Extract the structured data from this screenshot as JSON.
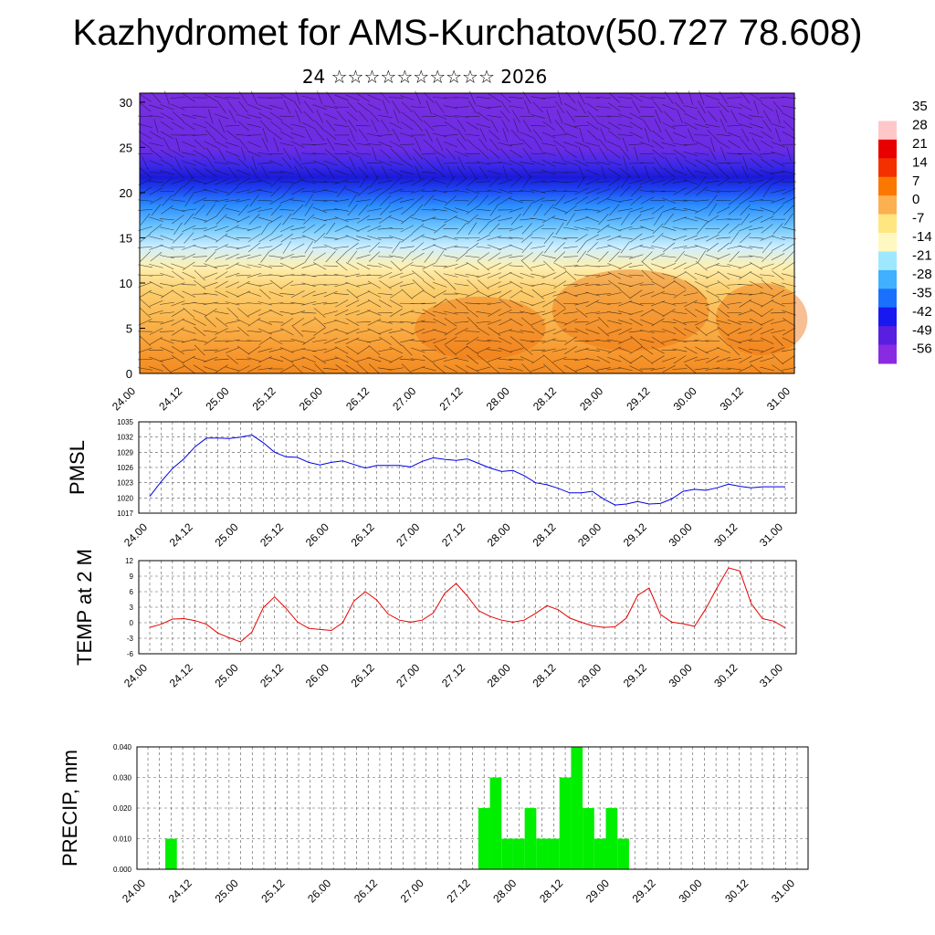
{
  "header": {
    "title": "Kazhydromet for AMS-Kurchatov(50.727 78.608)",
    "subtitle": "24 ☆☆☆☆☆☆☆☆☆☆ 2026"
  },
  "time_ticks": [
    "24.00",
    "24.12",
    "25.00",
    "25.12",
    "26.00",
    "26.12",
    "27.00",
    "27.12",
    "28.00",
    "28.12",
    "29.00",
    "29.12",
    "30.00",
    "30.12",
    "31.00"
  ],
  "colors": {
    "pmsl_line": "#0000e6",
    "temp_line": "#e60000",
    "precip_bar": "#00ee00"
  },
  "chart_data": [
    {
      "type": "heatmap",
      "name": "temperature-wind cross section",
      "x": "time_ticks",
      "ylim": [
        0,
        31
      ],
      "yticks": [
        0,
        5,
        10,
        15,
        20,
        25,
        30
      ],
      "colorbar": {
        "labels": [
          "35",
          "28",
          "21",
          "14",
          "7",
          "0",
          "-7",
          "-14",
          "-21",
          "-28",
          "-35",
          "-42",
          "-49",
          "-56"
        ],
        "colors": [
          "#ffffff",
          "#ffc8c8",
          "#e80000",
          "#f43000",
          "#fa7800",
          "#fcb050",
          "#ffe680",
          "#fff8c0",
          "#9ee8ff",
          "#40b0ff",
          "#1a70ff",
          "#1818f0",
          "#5a1ee0",
          "#8a2be2"
        ]
      }
    },
    {
      "type": "line",
      "name": "PMSL",
      "ylabel": "PMSL",
      "ylim": [
        1017,
        1035
      ],
      "yticks": [
        1017,
        1020,
        1023,
        1026,
        1029,
        1032,
        1035
      ],
      "x_hours": [
        0,
        3,
        6,
        9,
        12,
        15,
        18,
        21,
        24,
        27,
        30,
        33,
        36,
        39,
        42,
        45,
        48,
        51,
        54,
        57,
        60,
        63,
        66,
        69,
        72,
        75,
        78,
        81,
        84,
        87,
        90,
        93,
        96,
        99,
        102,
        105,
        108,
        111,
        114,
        117,
        120,
        123,
        126,
        129,
        132,
        135,
        138,
        141,
        144,
        147,
        150,
        153,
        156,
        159,
        162,
        165,
        168
      ],
      "values": [
        1020.3,
        1023.2,
        1025.8,
        1027.7,
        1030.1,
        1031.8,
        1031.8,
        1031.7,
        1032.0,
        1032.4,
        1030.9,
        1029.0,
        1028.1,
        1028.0,
        1027.0,
        1026.5,
        1027.0,
        1027.3,
        1026.6,
        1025.9,
        1026.4,
        1026.4,
        1026.4,
        1026.1,
        1027.2,
        1027.9,
        1027.6,
        1027.4,
        1027.7,
        1026.8,
        1025.9,
        1025.2,
        1025.4,
        1024.4,
        1023.0,
        1022.6,
        1021.9,
        1021.0,
        1021.0,
        1021.3,
        1019.8,
        1018.6,
        1018.8,
        1019.3,
        1018.8,
        1018.9,
        1019.8,
        1021.3,
        1021.7,
        1021.5,
        1022.0,
        1022.7,
        1022.3,
        1022.0,
        1022.2,
        1022.2,
        1022.2
      ]
    },
    {
      "type": "line",
      "name": "TEMP at 2 M",
      "ylabel": "TEMP at 2 M",
      "ylim": [
        -6,
        12
      ],
      "yticks": [
        -6,
        -3,
        0,
        3,
        6,
        9,
        12
      ],
      "x_hours": [
        0,
        3,
        6,
        9,
        12,
        15,
        18,
        21,
        24,
        27,
        30,
        33,
        36,
        39,
        42,
        45,
        48,
        51,
        54,
        57,
        60,
        63,
        66,
        69,
        72,
        75,
        78,
        81,
        84,
        87,
        90,
        93,
        96,
        99,
        102,
        105,
        108,
        111,
        114,
        117,
        120,
        123,
        126,
        129,
        132,
        135,
        138,
        141,
        144,
        147,
        150,
        153,
        156,
        159,
        162,
        165,
        168
      ],
      "values": [
        -0.9,
        -0.3,
        0.7,
        0.8,
        0.4,
        -0.3,
        -2.0,
        -2.9,
        -3.7,
        -1.8,
        2.9,
        5.0,
        2.8,
        0.2,
        -1.1,
        -1.3,
        -1.5,
        0.0,
        4.2,
        6.0,
        4.4,
        1.7,
        0.5,
        0.1,
        0.5,
        1.9,
        5.7,
        7.6,
        5.1,
        2.3,
        1.2,
        0.5,
        0.1,
        0.5,
        1.8,
        3.3,
        2.5,
        0.9,
        0.1,
        -0.6,
        -0.9,
        -0.8,
        0.9,
        5.3,
        6.7,
        1.6,
        0.1,
        -0.2,
        -0.7,
        2.7,
        6.8,
        10.6,
        10.0,
        3.7,
        0.8,
        0.3,
        -1.0
      ]
    },
    {
      "type": "bar",
      "name": "PRECIP",
      "ylabel": "PRECIP, mm",
      "ylim": [
        0,
        0.04
      ],
      "yticks": [
        "0.000",
        "0.010",
        "0.020",
        "0.030",
        "0.040"
      ],
      "bars": [
        {
          "t": 6,
          "value": 0.01
        },
        {
          "t": 87,
          "value": 0.02
        },
        {
          "t": 90,
          "value": 0.03
        },
        {
          "t": 93,
          "value": 0.01
        },
        {
          "t": 96,
          "value": 0.01
        },
        {
          "t": 99,
          "value": 0.02
        },
        {
          "t": 102,
          "value": 0.01
        },
        {
          "t": 105,
          "value": 0.01
        },
        {
          "t": 108,
          "value": 0.03
        },
        {
          "t": 111,
          "value": 0.04
        },
        {
          "t": 114,
          "value": 0.02
        },
        {
          "t": 117,
          "value": 0.01
        },
        {
          "t": 120,
          "value": 0.02
        },
        {
          "t": 123,
          "value": 0.01
        }
      ]
    }
  ]
}
